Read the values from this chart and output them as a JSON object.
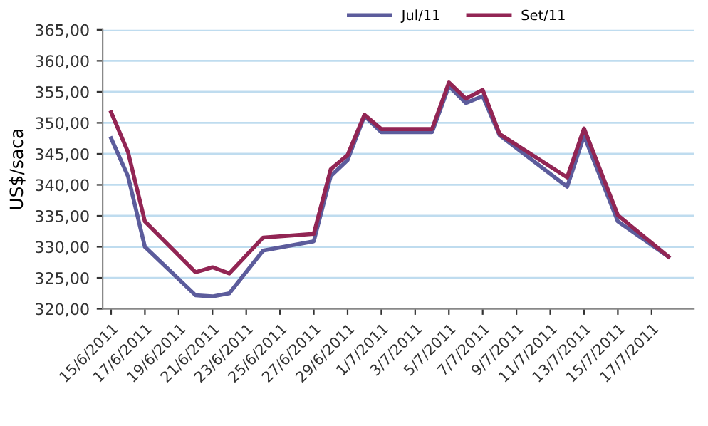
{
  "chart_data": {
    "type": "line",
    "ylabel": "US$/saca",
    "x": [
      "2011-06-15",
      "2011-06-16",
      "2011-06-17",
      "2011-06-20",
      "2011-06-21",
      "2011-06-22",
      "2011-06-24",
      "2011-06-27",
      "2011-06-28",
      "2011-06-29",
      "2011-06-30",
      "2011-07-01",
      "2011-07-04",
      "2011-07-05",
      "2011-07-06",
      "2011-07-07",
      "2011-07-08",
      "2011-07-12",
      "2011-07-13",
      "2011-07-15",
      "2011-07-18"
    ],
    "series": [
      {
        "name": "Jul/11",
        "color": "#5c5c9c",
        "values": [
          347.5,
          341.4,
          330.0,
          322.2,
          322.0,
          322.5,
          329.4,
          330.9,
          341.4,
          344.0,
          351.1,
          348.5,
          348.5,
          355.9,
          353.2,
          354.3,
          348.0,
          339.7,
          347.9,
          334.1,
          328.4
        ]
      },
      {
        "name": "Set/11",
        "color": "#922554",
        "values": [
          351.7,
          345.3,
          334.1,
          325.9,
          326.7,
          325.7,
          331.5,
          332.1,
          342.5,
          344.8,
          351.3,
          349.0,
          349.0,
          356.5,
          353.9,
          355.3,
          348.2,
          341.2,
          349.1,
          335.1,
          328.4
        ]
      }
    ],
    "xlim": [
      "2011-06-14T12:00",
      "2011-07-19T12:00"
    ],
    "xticks": [
      {
        "value": "2011-06-15",
        "label": "15/6/2011"
      },
      {
        "value": "2011-06-17",
        "label": "17/6/2011"
      },
      {
        "value": "2011-06-19",
        "label": "19/6/2011"
      },
      {
        "value": "2011-06-21",
        "label": "21/6/2011"
      },
      {
        "value": "2011-06-23",
        "label": "23/6/2011"
      },
      {
        "value": "2011-06-25",
        "label": "25/6/2011"
      },
      {
        "value": "2011-06-27",
        "label": "27/6/2011"
      },
      {
        "value": "2011-06-29",
        "label": "29/6/2011"
      },
      {
        "value": "2011-07-01",
        "label": "1/7/2011"
      },
      {
        "value": "2011-07-03",
        "label": "3/7/2011"
      },
      {
        "value": "2011-07-05",
        "label": "5/7/2011"
      },
      {
        "value": "2011-07-07",
        "label": "7/7/2011"
      },
      {
        "value": "2011-07-09",
        "label": "9/7/2011"
      },
      {
        "value": "2011-07-11",
        "label": "11/7/2011"
      },
      {
        "value": "2011-07-13",
        "label": "13/7/2011"
      },
      {
        "value": "2011-07-15",
        "label": "15/7/2011"
      },
      {
        "value": "2011-07-17",
        "label": "17/7/2011"
      }
    ],
    "ylim": [
      320,
      365
    ],
    "yticks": [
      {
        "value": 320,
        "label": "320,00"
      },
      {
        "value": 325,
        "label": "325,00"
      },
      {
        "value": 330,
        "label": "330,00"
      },
      {
        "value": 335,
        "label": "335,00"
      },
      {
        "value": 340,
        "label": "340,00"
      },
      {
        "value": 345,
        "label": "345,00"
      },
      {
        "value": 350,
        "label": "350,00"
      },
      {
        "value": 355,
        "label": "355,00"
      },
      {
        "value": 360,
        "label": "360,00"
      },
      {
        "value": 365,
        "label": "365,00"
      }
    ],
    "grid": "y",
    "legend": "top",
    "marker": "none",
    "line_style": "solid"
  }
}
